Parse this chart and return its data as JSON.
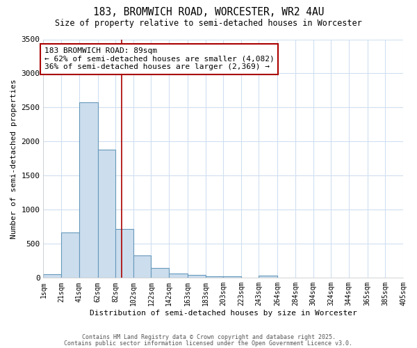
{
  "title": "183, BROMWICH ROAD, WORCESTER, WR2 4AU",
  "subtitle": "Size of property relative to semi-detached houses in Worcester",
  "xlabel": "Distribution of semi-detached houses by size in Worcester",
  "ylabel": "Number of semi-detached properties",
  "bin_labels": [
    "1sqm",
    "21sqm",
    "41sqm",
    "62sqm",
    "82sqm",
    "102sqm",
    "122sqm",
    "142sqm",
    "163sqm",
    "183sqm",
    "203sqm",
    "223sqm",
    "243sqm",
    "264sqm",
    "284sqm",
    "304sqm",
    "324sqm",
    "344sqm",
    "365sqm",
    "385sqm",
    "405sqm"
  ],
  "bin_edges": [
    1,
    21,
    41,
    62,
    82,
    102,
    122,
    142,
    163,
    183,
    203,
    223,
    243,
    264,
    284,
    304,
    324,
    344,
    365,
    385,
    405
  ],
  "bar_heights": [
    55,
    670,
    2580,
    1880,
    720,
    330,
    150,
    65,
    40,
    25,
    20,
    0,
    30,
    0,
    0,
    0,
    0,
    0,
    0,
    0
  ],
  "bar_color": "#ccdded",
  "bar_edge_color": "#6699bb",
  "property_line_x": 89,
  "property_line_color": "#aa0000",
  "annotation_text": "183 BROMWICH ROAD: 89sqm\n← 62% of semi-detached houses are smaller (4,082)\n36% of semi-detached houses are larger (2,369) →",
  "annotation_box_color": "#aa0000",
  "background_color": "#ffffff",
  "grid_color": "#d0dff0",
  "ylim": [
    0,
    3500
  ],
  "footer1": "Contains HM Land Registry data © Crown copyright and database right 2025.",
  "footer2": "Contains public sector information licensed under the Open Government Licence v3.0."
}
